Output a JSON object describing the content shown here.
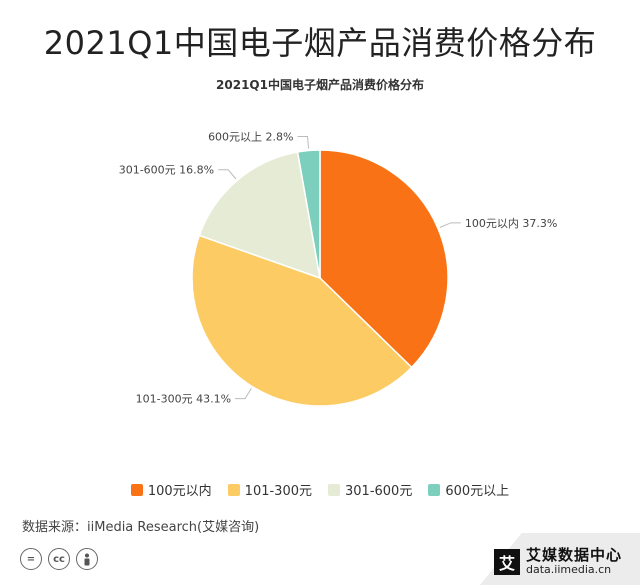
{
  "title": "2021Q1中国电子烟产品消费价格分布",
  "subtitle": "2021Q1中国电子烟产品消费价格分布",
  "chart_data": {
    "type": "pie",
    "title": "2021Q1中国电子烟产品消费价格分布",
    "legend_position": "bottom",
    "slices": [
      {
        "label": "100元以内",
        "value": 37.3,
        "value_label": "37.3%",
        "color": "#f97316"
      },
      {
        "label": "101-300元",
        "value": 43.1,
        "value_label": "43.1%",
        "color": "#fccb63"
      },
      {
        "label": "301-600元",
        "value": 16.8,
        "value_label": "16.8%",
        "color": "#e6ebd6"
      },
      {
        "label": "600元以上",
        "value": 2.8,
        "value_label": "2.8%",
        "color": "#7ccfbc"
      }
    ]
  },
  "source": "数据来源：iiMedia Research(艾媒咨询)",
  "brand": {
    "logo_char": "艾",
    "name": "艾媒数据中心",
    "url": "data.iimedia.cn"
  },
  "license_icons": [
    "equals-icon",
    "cc-icon",
    "person-icon"
  ]
}
